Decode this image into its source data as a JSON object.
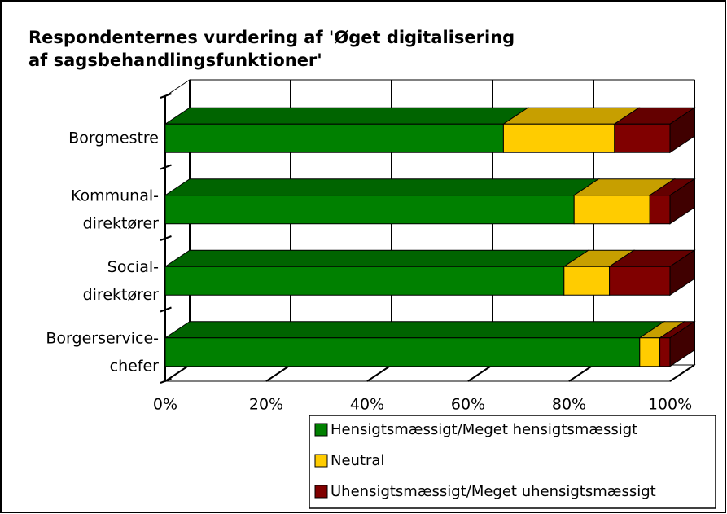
{
  "chart_data": {
    "type": "stacked-bar-3d-horizontal",
    "title": "Respondenternes vurdering af 'Øget digitalisering\naf sagsbehandlingsfunktioner'",
    "categories": [
      "Borgmestre",
      "Kommunal-\ndirektører",
      "Social-\ndirektører",
      "Borgerservice-\nchefer"
    ],
    "series": [
      {
        "name": "Hensigtsmæssigt/Meget hensigtsmæssigt",
        "color": "#008000",
        "values": [
          67,
          81,
          79,
          94
        ]
      },
      {
        "name": "Neutral",
        "color": "#ffcc00",
        "values": [
          22,
          15,
          9,
          4
        ]
      },
      {
        "name": "Uhensigtsmæssigt/Meget uhensigtsmæssigt",
        "color": "#800000",
        "values": [
          11,
          4,
          12,
          2
        ]
      }
    ],
    "xlim": [
      0,
      100
    ],
    "xticks": [
      {
        "value": 0,
        "label": "0%"
      },
      {
        "value": 20,
        "label": "20%"
      },
      {
        "value": 40,
        "label": "40%"
      },
      {
        "value": 60,
        "label": "60%"
      },
      {
        "value": 80,
        "label": "80%"
      },
      {
        "value": 100,
        "label": "100%"
      }
    ],
    "grid": true,
    "legend": "bottom-right"
  }
}
